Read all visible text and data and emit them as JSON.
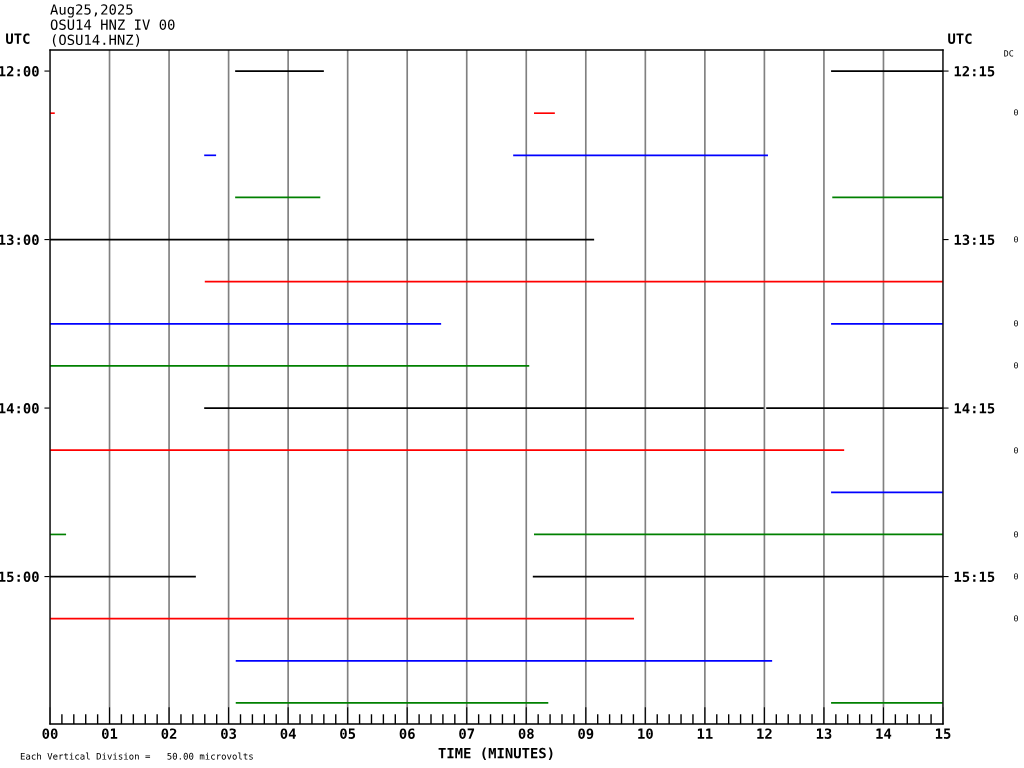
{
  "chart_data": {
    "type": "line",
    "title": "Aug25,2025",
    "subtitle": "OSU14 HNZ IV 00\n(OSU14.HNZ)",
    "xlabel": "TIME (MINUTES)",
    "ylabel": "UTC",
    "y2label": "UTC",
    "y3label": "DC",
    "annotations": [
      "Each Vertical Division =   50.00 microvolts",
      "0",
      "0",
      "0",
      "0",
      "0",
      "0",
      "0",
      "0"
    ],
    "xlim": [
      0,
      15
    ],
    "xticks": [
      {
        "value": 0,
        "label": "00"
      },
      {
        "value": 0.2,
        "label": null
      },
      {
        "value": 0.4,
        "label": null
      },
      {
        "value": 0.6,
        "label": null
      },
      {
        "value": 0.8,
        "label": null
      },
      {
        "value": 1,
        "label": "01"
      },
      {
        "value": 1.2,
        "label": null
      },
      {
        "value": 1.4,
        "label": null
      },
      {
        "value": 1.6,
        "label": null
      },
      {
        "value": 1.8,
        "label": null
      },
      {
        "value": 2,
        "label": "02"
      },
      {
        "value": 2.2,
        "label": null
      },
      {
        "value": 2.4,
        "label": null
      },
      {
        "value": 2.6,
        "label": null
      },
      {
        "value": 2.8,
        "label": null
      },
      {
        "value": 3,
        "label": "03"
      },
      {
        "value": 3.2,
        "label": null
      },
      {
        "value": 3.4,
        "label": null
      },
      {
        "value": 3.6,
        "label": null
      },
      {
        "value": 3.8,
        "label": null
      },
      {
        "value": 4,
        "label": "04"
      },
      {
        "value": 4.2,
        "label": null
      },
      {
        "value": 4.4,
        "label": null
      },
      {
        "value": 4.6,
        "label": null
      },
      {
        "value": 4.8,
        "label": null
      },
      {
        "value": 5,
        "label": "05"
      },
      {
        "value": 5.2,
        "label": null
      },
      {
        "value": 5.4,
        "label": null
      },
      {
        "value": 5.6,
        "label": null
      },
      {
        "value": 5.8,
        "label": null
      },
      {
        "value": 6,
        "label": "06"
      },
      {
        "value": 6.2,
        "label": null
      },
      {
        "value": 6.4,
        "label": null
      },
      {
        "value": 6.6,
        "label": null
      },
      {
        "value": 6.8,
        "label": null
      },
      {
        "value": 7,
        "label": "07"
      },
      {
        "value": 7.2,
        "label": null
      },
      {
        "value": 7.4,
        "label": null
      },
      {
        "value": 7.6,
        "label": null
      },
      {
        "value": 7.8,
        "label": null
      },
      {
        "value": 8,
        "label": "08"
      },
      {
        "value": 8.2,
        "label": null
      },
      {
        "value": 8.4,
        "label": null
      },
      {
        "value": 8.6,
        "label": null
      },
      {
        "value": 8.8,
        "label": null
      },
      {
        "value": 9,
        "label": "09"
      },
      {
        "value": 9.2,
        "label": null
      },
      {
        "value": 9.4,
        "label": null
      },
      {
        "value": 9.6,
        "label": null
      },
      {
        "value": 9.8,
        "label": null
      },
      {
        "value": 10,
        "label": "10"
      },
      {
        "value": 10.2,
        "label": null
      },
      {
        "value": 10.4,
        "label": null
      },
      {
        "value": 10.6,
        "label": null
      },
      {
        "value": 10.8,
        "label": null
      },
      {
        "value": 11,
        "label": "11"
      },
      {
        "value": 11.2,
        "label": null
      },
      {
        "value": 11.4,
        "label": null
      },
      {
        "value": 11.6,
        "label": null
      },
      {
        "value": 11.8,
        "label": null
      },
      {
        "value": 12,
        "label": "12"
      },
      {
        "value": 12.2,
        "label": null
      },
      {
        "value": 12.4,
        "label": null
      },
      {
        "value": 12.6,
        "label": null
      },
      {
        "value": 12.8,
        "label": null
      },
      {
        "value": 13,
        "label": "13"
      },
      {
        "value": 13.2,
        "label": null
      },
      {
        "value": 13.4,
        "label": null
      },
      {
        "value": 13.6,
        "label": null
      },
      {
        "value": 13.8,
        "label": null
      },
      {
        "value": 14,
        "label": "14"
      },
      {
        "value": 14.2,
        "label": null
      },
      {
        "value": 14.4,
        "label": null
      },
      {
        "value": 14.6,
        "label": null
      },
      {
        "value": 14.8,
        "label": null
      },
      {
        "value": 15,
        "label": "15"
      }
    ],
    "ylim": [
      15.875,
      11.875
    ],
    "yticks": [
      {
        "value": 12,
        "label": "12:00"
      },
      {
        "value": 13,
        "label": "13:00"
      },
      {
        "value": 14,
        "label": "14:00"
      },
      {
        "value": 15,
        "label": "15:00"
      }
    ],
    "y2lim": [
      16.125,
      12.125
    ],
    "y2ticks": [
      {
        "value": 12.25,
        "label": "12:15"
      },
      {
        "value": 13.25,
        "label": "13:15"
      },
      {
        "value": 14.25,
        "label": "14:15"
      },
      {
        "value": 15.25,
        "label": "15:15"
      }
    ],
    "grid": "x",
    "legend": false,
    "marker": "none",
    "line_style": "solid",
    "series": [
      {
        "color": "#000000",
        "x": [
          3.11,
          4.6
        ],
        "values": [
          12,
          12
        ]
      },
      {
        "color": "#000000",
        "x": [
          13.12,
          15
        ],
        "values": [
          12,
          12
        ]
      },
      {
        "color": "#ff0000",
        "x": [
          0,
          0.08
        ],
        "values": [
          12.25,
          12.25
        ]
      },
      {
        "color": "#ff0000",
        "x": [
          8.13,
          8.48
        ],
        "values": [
          12.25,
          12.25
        ]
      },
      {
        "color": "#0000ff",
        "x": [
          2.59,
          2.79
        ],
        "values": [
          12.5,
          12.5
        ]
      },
      {
        "color": "#0000ff",
        "x": [
          7.78,
          12.06
        ],
        "values": [
          12.5,
          12.5
        ]
      },
      {
        "color": "#008000",
        "x": [
          3.11,
          4.54
        ],
        "values": [
          12.75,
          12.75
        ]
      },
      {
        "color": "#008000",
        "x": [
          13.14,
          15
        ],
        "values": [
          12.75,
          12.75
        ]
      },
      {
        "color": "#000000",
        "x": [
          0,
          9.14
        ],
        "values": [
          13,
          13
        ]
      },
      {
        "color": "#ff0000",
        "x": [
          2.6,
          15
        ],
        "values": [
          13.25,
          13.25
        ]
      },
      {
        "color": "#0000ff",
        "x": [
          0,
          6.57
        ],
        "values": [
          13.5,
          13.5
        ]
      },
      {
        "color": "#0000ff",
        "x": [
          13.12,
          15
        ],
        "values": [
          13.5,
          13.5
        ]
      },
      {
        "color": "#008000",
        "x": [
          0,
          8.05
        ],
        "values": [
          13.75,
          13.75
        ]
      },
      {
        "color": "#000000",
        "x": [
          2.59,
          11.99
        ],
        "values": [
          14,
          14
        ]
      },
      {
        "color": "#000000",
        "x": [
          12.03,
          15
        ],
        "values": [
          14,
          14
        ]
      },
      {
        "color": "#ff0000",
        "x": [
          0,
          13.34
        ],
        "values": [
          14.25,
          14.25
        ]
      },
      {
        "color": "#0000ff",
        "x": [
          13.12,
          15
        ],
        "values": [
          14.5,
          14.5
        ]
      },
      {
        "color": "#008000",
        "x": [
          0,
          0.27
        ],
        "values": [
          14.75,
          14.75
        ]
      },
      {
        "color": "#008000",
        "x": [
          8.13,
          15
        ],
        "values": [
          14.75,
          14.75
        ]
      },
      {
        "color": "#000000",
        "x": [
          0,
          2.45
        ],
        "values": [
          15,
          15
        ]
      },
      {
        "color": "#000000",
        "x": [
          8.11,
          15
        ],
        "values": [
          15,
          15
        ]
      },
      {
        "color": "#ff0000",
        "x": [
          0,
          9.81
        ],
        "values": [
          15.25,
          15.25
        ]
      },
      {
        "color": "#0000ff",
        "x": [
          3.12,
          12.13
        ],
        "values": [
          15.5,
          15.5
        ]
      },
      {
        "color": "#008000",
        "x": [
          3.12,
          8.37
        ],
        "values": [
          15.75,
          15.75
        ]
      },
      {
        "color": "#008000",
        "x": [
          13.12,
          15
        ],
        "values": [
          15.75,
          15.75
        ]
      }
    ]
  }
}
